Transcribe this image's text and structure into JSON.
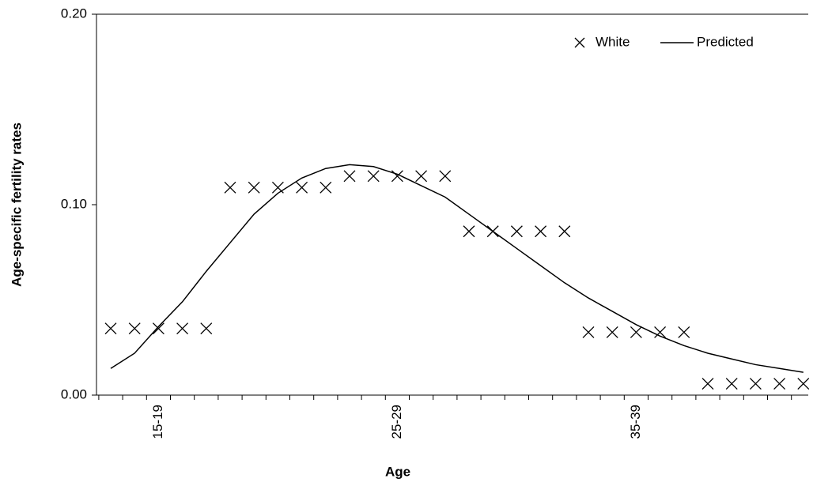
{
  "chart_data": {
    "type": "line",
    "x_label": "Age",
    "y_label": "Age-specific fertility rates",
    "categories": [
      null,
      null,
      "15-19",
      null,
      null,
      null,
      null,
      null,
      null,
      null,
      null,
      null,
      "25-29",
      null,
      null,
      null,
      null,
      null,
      null,
      null,
      null,
      null,
      "35-39",
      null,
      null,
      null,
      null,
      null,
      null,
      null
    ],
    "series": [
      {
        "name": "White",
        "color": "#000000",
        "marker": "x",
        "values": [
          0.035,
          0.035,
          0.035,
          0.035,
          0.035,
          0.109,
          0.109,
          0.109,
          0.109,
          0.109,
          0.115,
          0.115,
          0.115,
          0.115,
          0.115,
          0.086,
          0.086,
          0.086,
          0.086,
          0.086,
          0.033,
          0.033,
          0.033,
          0.033,
          0.033,
          0.006,
          0.006,
          0.006,
          0.006,
          0.006
        ]
      },
      {
        "name": "Predicted",
        "color": "#000000",
        "marker": "line",
        "values": [
          0.014,
          0.022,
          0.036,
          0.049,
          0.065,
          0.08,
          0.095,
          0.106,
          0.114,
          0.119,
          0.121,
          0.12,
          0.116,
          0.11,
          0.104,
          0.095,
          0.086,
          0.077,
          0.068,
          0.059,
          0.051,
          0.044,
          0.037,
          0.031,
          0.026,
          0.022,
          0.019,
          0.016,
          0.014,
          0.012
        ]
      }
    ],
    "ylim": [
      0,
      0.2
    ],
    "yticks": [
      {
        "value": 0,
        "label": "0.00"
      },
      {
        "value": 0.1,
        "label": "0.10"
      },
      {
        "value": 0.2,
        "label": "0.20"
      }
    ],
    "legend": "top-right"
  }
}
